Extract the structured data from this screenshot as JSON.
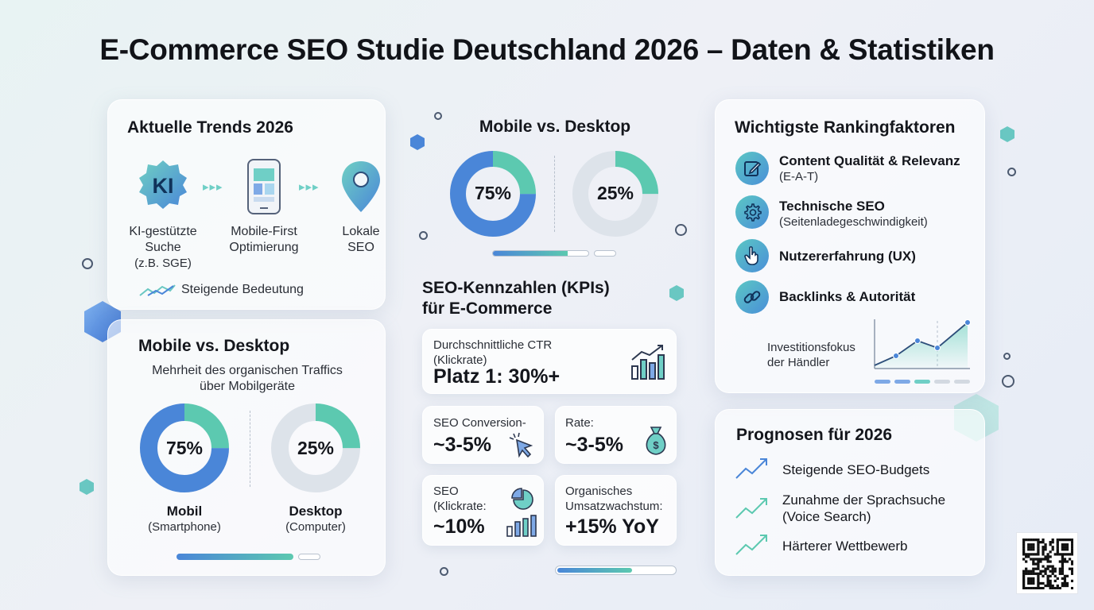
{
  "title": "E-Commerce SEO Studie Deutschland 2026 – Daten & Statistiken",
  "trends": {
    "title": "Aktuelle Trends 2026",
    "items": [
      {
        "icon": "ki-badge-icon",
        "badge": "KI",
        "label_1": "KI-gestützte",
        "label_2": "Suche",
        "label_3": "(z.B. SGE)"
      },
      {
        "icon": "smartphone-icon",
        "label_1": "Mobile-First",
        "label_2": "Optimierung"
      },
      {
        "icon": "location-pin-icon",
        "label_1": "Lokale",
        "label_2": "SEO"
      }
    ],
    "footer": "Steigende Bedeutung"
  },
  "mobile_top": {
    "title": "Mobile vs. Desktop",
    "mobile_pct": "75%",
    "desktop_pct": "25%",
    "mobile_share": 0.75,
    "desktop_share": 0.25
  },
  "mobile_left": {
    "title": "Mobile vs. Desktop",
    "subtitle_1": "Mehrheit des organischen Traffics",
    "subtitle_2": "über Mobilgeräte",
    "mobile_pct": "75%",
    "desktop_pct": "25%",
    "mobile_share": 0.75,
    "desktop_share": 0.25,
    "mobile_label": "Mobil",
    "mobile_sub": "(Smartphone)",
    "desktop_label": "Desktop",
    "desktop_sub": "(Computer)"
  },
  "kpis": {
    "title_1": "SEO-Kennzahlen (KPIs)",
    "title_2": "für E-Commerce",
    "ctr": {
      "label_1": "Durchschnittliche CTR",
      "label_2": "(Klickrate)",
      "value": "Platz 1: 30%+"
    },
    "conv_a": {
      "label": "SEO Conversion-",
      "value": "~3-5%"
    },
    "conv_b": {
      "label": "Rate:",
      "value": "~3-5%"
    },
    "click": {
      "label_1": "SEO",
      "label_2": "(Klickrate:",
      "value": "~10%"
    },
    "growth": {
      "label_1": "Organisches",
      "label_2": "Umsatzwachstum:",
      "value": "+15% YoY"
    }
  },
  "ranking": {
    "title": "Wichtigste Rankingfaktoren",
    "items": [
      {
        "icon": "edit-icon",
        "label": "Content Qualität & Relevanz",
        "sub": "(E-A-T)"
      },
      {
        "icon": "gear-icon",
        "label": "Technische SEO",
        "sub": "(Seitenladegeschwindigkeit)"
      },
      {
        "icon": "pointer-hand-icon",
        "label": "Nutzererfahrung (UX)",
        "sub": ""
      },
      {
        "icon": "link-icon",
        "label": "Backlinks & Autorität",
        "sub": ""
      }
    ],
    "invest_1": "Investitionsfokus",
    "invest_2": "der Händler"
  },
  "prognosen": {
    "title": "Prognosen für 2026",
    "items": [
      {
        "label_1": "Steigende SEO-Budgets",
        "label_2": ""
      },
      {
        "label_1": "Zunahme der Sprachsuche",
        "label_2": "(Voice Search)"
      },
      {
        "label_1": "Härterer Wettbewerb",
        "label_2": ""
      }
    ]
  },
  "colors": {
    "teal": "#5cc9b0",
    "blue": "#4a86d8",
    "ring_bg": "#dde3ea"
  }
}
